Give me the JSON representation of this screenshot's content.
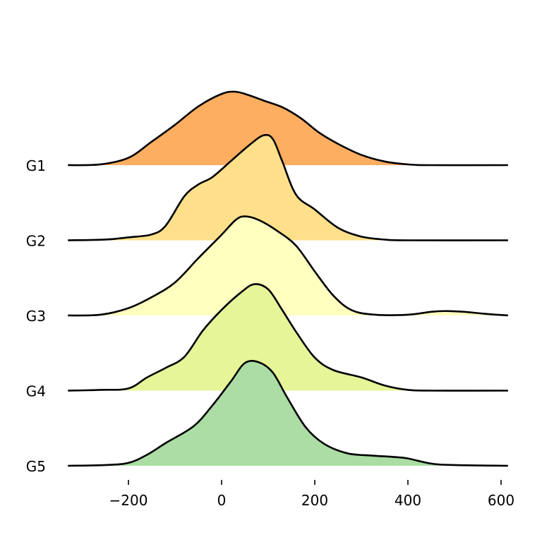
{
  "chart_data": {
    "type": "area",
    "title": "",
    "xlabel": "",
    "ylabel": "",
    "xlim": [
      -330,
      615
    ],
    "xticks": [
      -200,
      0,
      200,
      400,
      600
    ],
    "xtick_labels": [
      "−200",
      "0",
      "200",
      "400",
      "600"
    ],
    "grid": false,
    "legend": "none",
    "series": [
      {
        "name": "G1",
        "color": "#fdae61",
        "points": [
          [
            -330,
            0
          ],
          [
            -260,
            0.01
          ],
          [
            -200,
            0.1
          ],
          [
            -150,
            0.32
          ],
          [
            -100,
            0.55
          ],
          [
            -50,
            0.8
          ],
          [
            0,
            0.97
          ],
          [
            30,
            1.0
          ],
          [
            60,
            0.95
          ],
          [
            90,
            0.88
          ],
          [
            130,
            0.79
          ],
          [
            170,
            0.64
          ],
          [
            210,
            0.44
          ],
          [
            250,
            0.29
          ],
          [
            300,
            0.14
          ],
          [
            350,
            0.05
          ],
          [
            400,
            0.01
          ],
          [
            450,
            0
          ],
          [
            615,
            0
          ]
        ]
      },
      {
        "name": "G2",
        "color": "#fee08b",
        "points": [
          [
            -330,
            0
          ],
          [
            -250,
            0.01
          ],
          [
            -200,
            0.04
          ],
          [
            -150,
            0.08
          ],
          [
            -120,
            0.2
          ],
          [
            -80,
            0.6
          ],
          [
            -50,
            0.76
          ],
          [
            -20,
            0.86
          ],
          [
            20,
            1.08
          ],
          [
            60,
            1.3
          ],
          [
            90,
            1.43
          ],
          [
            110,
            1.38
          ],
          [
            130,
            1.08
          ],
          [
            160,
            0.62
          ],
          [
            200,
            0.42
          ],
          [
            250,
            0.17
          ],
          [
            300,
            0.05
          ],
          [
            350,
            0.01
          ],
          [
            400,
            0
          ],
          [
            615,
            0
          ]
        ]
      },
      {
        "name": "G3",
        "color": "#ffffbf",
        "points": [
          [
            -330,
            0
          ],
          [
            -260,
            0.01
          ],
          [
            -200,
            0.1
          ],
          [
            -150,
            0.25
          ],
          [
            -100,
            0.45
          ],
          [
            -50,
            0.78
          ],
          [
            0,
            1.1
          ],
          [
            30,
            1.3
          ],
          [
            50,
            1.35
          ],
          [
            80,
            1.3
          ],
          [
            120,
            1.15
          ],
          [
            160,
            0.95
          ],
          [
            200,
            0.6
          ],
          [
            240,
            0.27
          ],
          [
            280,
            0.07
          ],
          [
            330,
            0.01
          ],
          [
            400,
            0.01
          ],
          [
            450,
            0.05
          ],
          [
            480,
            0.06
          ],
          [
            520,
            0.05
          ],
          [
            570,
            0.02
          ],
          [
            615,
            0
          ]
        ]
      },
      {
        "name": "G4",
        "color": "#e6f598",
        "points": [
          [
            -330,
            0
          ],
          [
            -260,
            0.01
          ],
          [
            -200,
            0.03
          ],
          [
            -160,
            0.18
          ],
          [
            -120,
            0.31
          ],
          [
            -80,
            0.46
          ],
          [
            -40,
            0.82
          ],
          [
            0,
            1.1
          ],
          [
            40,
            1.33
          ],
          [
            70,
            1.45
          ],
          [
            100,
            1.38
          ],
          [
            130,
            1.1
          ],
          [
            160,
            0.8
          ],
          [
            200,
            0.45
          ],
          [
            240,
            0.28
          ],
          [
            300,
            0.18
          ],
          [
            350,
            0.07
          ],
          [
            400,
            0.01
          ],
          [
            450,
            0
          ],
          [
            615,
            0
          ]
        ]
      },
      {
        "name": "G5",
        "color": "#abdda4",
        "points": [
          [
            -330,
            0
          ],
          [
            -250,
            0.01
          ],
          [
            -200,
            0.04
          ],
          [
            -160,
            0.15
          ],
          [
            -120,
            0.31
          ],
          [
            -60,
            0.54
          ],
          [
            -20,
            0.82
          ],
          [
            20,
            1.15
          ],
          [
            50,
            1.4
          ],
          [
            80,
            1.41
          ],
          [
            110,
            1.27
          ],
          [
            140,
            0.94
          ],
          [
            180,
            0.53
          ],
          [
            220,
            0.3
          ],
          [
            270,
            0.17
          ],
          [
            320,
            0.14
          ],
          [
            370,
            0.12
          ],
          [
            400,
            0.1
          ],
          [
            450,
            0.03
          ],
          [
            500,
            0.01
          ],
          [
            615,
            0
          ]
        ]
      }
    ]
  }
}
